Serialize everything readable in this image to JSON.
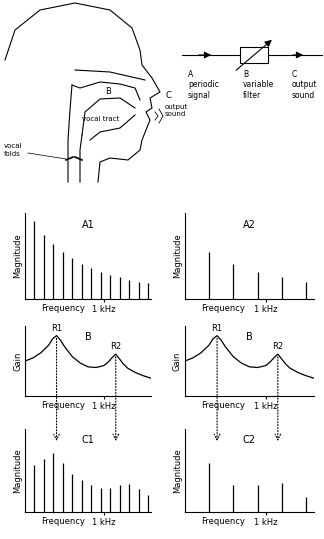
{
  "diagram": {
    "head": {
      "labels": {
        "vocal_tract": "vocal tract",
        "cavity": "B",
        "output_letter": "C",
        "output": "output\nsound",
        "vocal_folds": "vocal\nfolds"
      }
    },
    "block_diagram": {
      "nodes": [
        {
          "letter": "A",
          "label": "periodic\nsignal"
        },
        {
          "letter": "B",
          "label": "variable\nfilter"
        },
        {
          "letter": "C",
          "label": "output\nsound"
        }
      ]
    }
  },
  "chart_data": [
    {
      "type": "stem",
      "title": "A1",
      "xlabel": "Frequency",
      "ylabel": "Magnitude",
      "color": "#000000",
      "x": [
        120,
        240,
        360,
        480,
        600,
        720,
        840,
        960,
        1080,
        1200,
        1320,
        1440,
        1560
      ],
      "values": [
        1.0,
        0.82,
        0.7,
        0.6,
        0.52,
        0.45,
        0.4,
        0.35,
        0.31,
        0.28,
        0.25,
        0.22,
        0.2
      ],
      "xlim": [
        0,
        1600
      ],
      "ylim": [
        0,
        1.1
      ],
      "xticks": [
        {
          "value": 1000,
          "label": "1 kHz"
        }
      ],
      "yticks": [],
      "tick_labels": "x"
    },
    {
      "type": "stem",
      "title": "A2",
      "xlabel": "Frequency",
      "ylabel": "Magnitude",
      "color": "#000000",
      "x": [
        300,
        600,
        900,
        1200,
        1500
      ],
      "values": [
        0.6,
        0.45,
        0.35,
        0.28,
        0.22
      ],
      "xlim": [
        0,
        1600
      ],
      "ylim": [
        0,
        1.1
      ],
      "xticks": [
        {
          "value": 1000,
          "label": "1 kHz"
        }
      ],
      "yticks": [],
      "tick_labels": "x"
    },
    {
      "type": "line",
      "title": "B",
      "xlabel": "Frequency",
      "ylabel": "Gain",
      "color": "#000000",
      "x": [
        0,
        100,
        200,
        300,
        350,
        400,
        450,
        500,
        600,
        700,
        800,
        900,
        1000,
        1050,
        1100,
        1150,
        1200,
        1250,
        1300,
        1400,
        1500,
        1600
      ],
      "values": [
        0.55,
        0.6,
        0.68,
        0.8,
        0.9,
        0.95,
        0.88,
        0.78,
        0.62,
        0.52,
        0.46,
        0.45,
        0.48,
        0.53,
        0.6,
        0.66,
        0.58,
        0.5,
        0.44,
        0.37,
        0.32,
        0.28
      ],
      "annotations": [
        {
          "text": "R1",
          "x": 400
        },
        {
          "text": "R2",
          "x": 1150
        }
      ],
      "xlim": [
        0,
        1600
      ],
      "ylim": [
        0,
        1.1
      ],
      "xticks": [
        {
          "value": 1000,
          "label": "1 kHz"
        }
      ],
      "yticks": [],
      "tick_labels": "x"
    },
    {
      "type": "line",
      "title": "B",
      "xlabel": "Frequency",
      "ylabel": "Gain",
      "color": "#000000",
      "x": [
        0,
        100,
        200,
        300,
        350,
        400,
        450,
        500,
        600,
        700,
        800,
        900,
        1000,
        1050,
        1100,
        1150,
        1200,
        1250,
        1300,
        1400,
        1500,
        1600
      ],
      "values": [
        0.55,
        0.6,
        0.68,
        0.8,
        0.9,
        0.95,
        0.88,
        0.78,
        0.62,
        0.52,
        0.46,
        0.45,
        0.48,
        0.53,
        0.6,
        0.66,
        0.58,
        0.5,
        0.44,
        0.37,
        0.32,
        0.28
      ],
      "annotations": [
        {
          "text": "R1",
          "x": 400
        },
        {
          "text": "R2",
          "x": 1150
        }
      ],
      "xlim": [
        0,
        1600
      ],
      "ylim": [
        0,
        1.1
      ],
      "xticks": [
        {
          "value": 1000,
          "label": "1 kHz"
        }
      ],
      "yticks": [],
      "tick_labels": "x"
    },
    {
      "type": "stem",
      "title": "C1",
      "xlabel": "Frequency",
      "ylabel": "Magnitude",
      "color": "#000000",
      "x": [
        120,
        240,
        360,
        480,
        600,
        720,
        840,
        960,
        1080,
        1200,
        1320,
        1440,
        1560
      ],
      "values": [
        0.62,
        0.7,
        0.78,
        0.65,
        0.5,
        0.42,
        0.36,
        0.32,
        0.32,
        0.35,
        0.37,
        0.3,
        0.22
      ],
      "xlim": [
        0,
        1600
      ],
      "ylim": [
        0,
        1.1
      ],
      "xticks": [
        {
          "value": 1000,
          "label": "1 kHz"
        }
      ],
      "yticks": [],
      "tick_labels": "x"
    },
    {
      "type": "stem",
      "title": "C2",
      "xlabel": "Frequency",
      "ylabel": "Magnitude",
      "color": "#000000",
      "x": [
        300,
        600,
        900,
        1200,
        1500
      ],
      "values": [
        0.65,
        0.35,
        0.35,
        0.38,
        0.2
      ],
      "xlim": [
        0,
        1600
      ],
      "ylim": [
        0,
        1.1
      ],
      "xticks": [
        {
          "value": 1000,
          "label": "1 kHz"
        }
      ],
      "yticks": [],
      "tick_labels": "x"
    }
  ]
}
